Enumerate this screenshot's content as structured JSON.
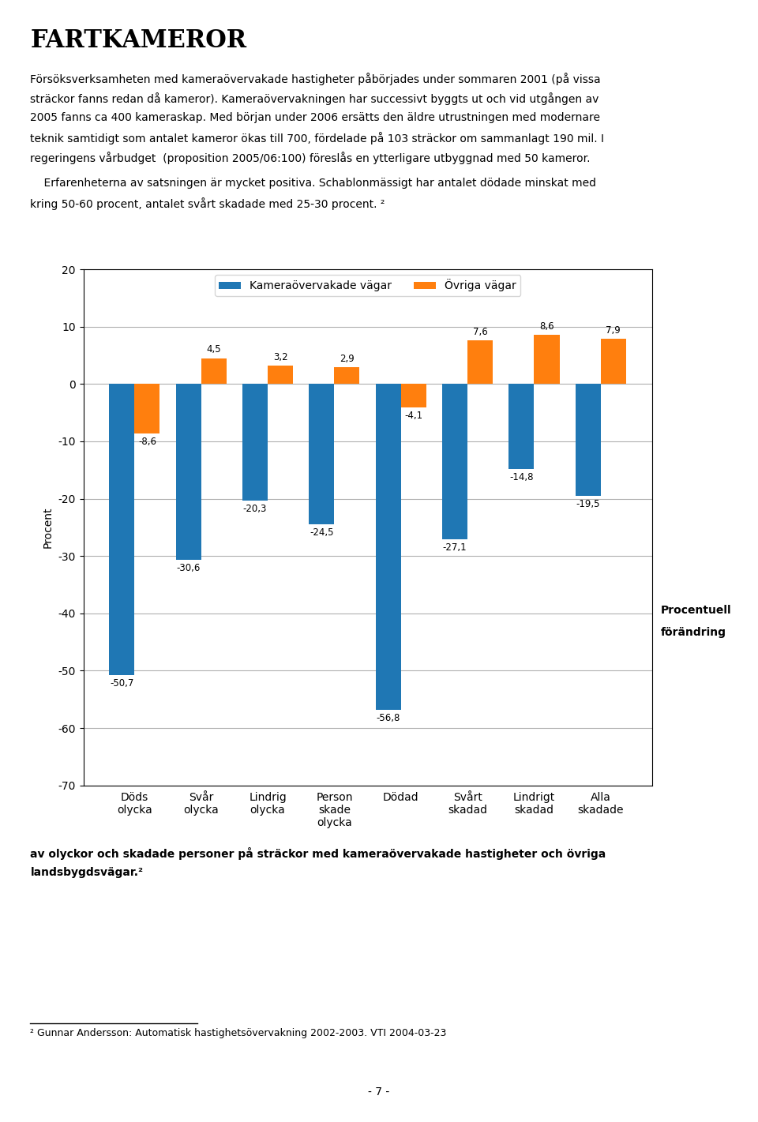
{
  "chart_data": {
    "type": "bar",
    "title": "FARTKAMEROR",
    "annotations": [
      "Försöksverksamheten med kameraövervakade hastigheter påbörjades under sommaren 2001 (på vissa",
      "sträckor fanns redan då kameror). Kameraövervakningen har successivt byggts ut och vid utgången av",
      "2005 fanns ca 400 kameraskap. Med början under 2006 ersätts den äldre utrustningen med modernare",
      "teknik samtidigt som antalet kameror ökas till 700, fördelade på 103 sträckor om sammanlagt 190 mil. I",
      "regeringens vårbudget  (proposition 2005/06:100) föreslås en ytterligare utbyggnad med 50 kameror.",
      "    Erfarenheterna av satsningen är mycket positiva. Schablonmässigt har antalet dödade minskat med",
      "kring 50-60 procent, antalet svårt skadade med 25-30 procent. ²",
      "Procentuell",
      "förändring",
      "av olyckor och skadade personer på sträckor med kameraövervakade hastigheter och övriga",
      "landsbygdsvägar.²",
      "² Gunnar Andersson: Automatisk hastighetsövervakning 2002-2003. VTI 2004-03-23",
      "- 7 -"
    ],
    "categories": [
      "Döds\nolycka",
      "Svår\nolycka",
      "Lindrig\nolycka",
      "Person\nskade\nolycka",
      "Dödad",
      "Svårt\nskadad",
      "Lindrigt\nskadad",
      "Alla\nskadade"
    ],
    "series": [
      {
        "name": "Kameraövervakade vägar",
        "values": [
          -50.7,
          -30.6,
          -20.3,
          -24.5,
          -56.8,
          -27.1,
          -14.8,
          -19.5
        ],
        "value_labels": [
          "-50,7",
          "-30,6",
          "-20,3",
          "-24,5",
          "-56,8",
          "-27,1",
          "-14,8",
          "-19,5"
        ]
      },
      {
        "name": "Övriga vägar",
        "values": [
          -8.6,
          4.5,
          3.2,
          2.9,
          -4.1,
          7.6,
          8.6,
          7.9
        ],
        "value_labels": [
          "-8,6",
          "4,5",
          "3,2",
          "2,9",
          "-4,1",
          "7,6",
          "8,6",
          "7,9"
        ]
      }
    ],
    "ylabel": "Procent",
    "ylim": [
      -70,
      20
    ],
    "yticks": [
      -70,
      -60,
      -50,
      -40,
      -30,
      -20,
      -10,
      0,
      10,
      20
    ],
    "grid": true,
    "legend": "upper center",
    "data_labels": true
  }
}
